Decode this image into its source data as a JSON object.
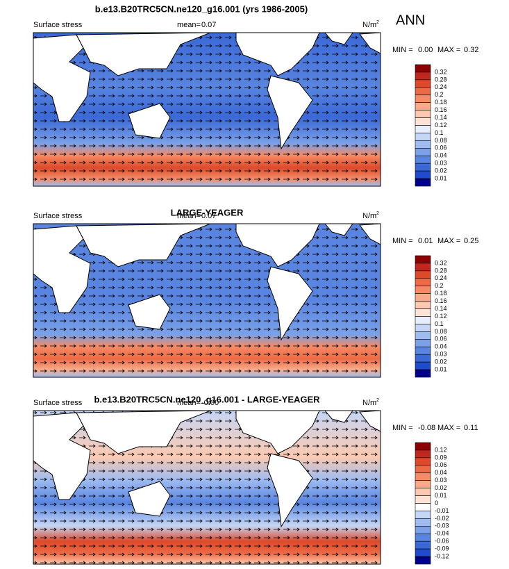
{
  "title": "b.e13.B20TRC5CN.ne120_g16.001 (yrs 1986-2005)",
  "season": "ANN",
  "panels": [
    {
      "variable": "Surface stress",
      "mean_label": "mean=",
      "mean": "0.07",
      "units": "N/m",
      "units_exponent": "2",
      "min_label": "MIN =",
      "min": "0.00",
      "max_label": "MAX =",
      "max": "0.32",
      "colorbar": {
        "labels": [
          "0.32",
          "0.28",
          "0.24",
          "0.2",
          "0.18",
          "0.16",
          "0.14",
          "0.12",
          "0.1",
          "0.08",
          "0.06",
          "0.04",
          "0.03",
          "0.02",
          "0.01"
        ],
        "colors": [
          "#8b0000",
          "#c0281f",
          "#dc4a2a",
          "#ec6a45",
          "#f48b65",
          "#f8ab8b",
          "#fbc9b1",
          "#fde3d5",
          "#e8eefb",
          "#c5d6f6",
          "#9fbcf0",
          "#7aa0e8",
          "#5985e0",
          "#3a68d6",
          "#1f4ccc",
          "#00008b"
        ]
      }
    },
    {
      "title": "LARGE-YEAGER",
      "variable": "Surface stress",
      "mean_label": "mean=",
      "mean": "0.07",
      "units": "N/m",
      "units_exponent": "2",
      "min_label": "MIN =",
      "min": "0.01",
      "max_label": "MAX =",
      "max": "0.25",
      "colorbar": {
        "labels": [
          "0.32",
          "0.28",
          "0.24",
          "0.2",
          "0.18",
          "0.16",
          "0.14",
          "0.12",
          "0.1",
          "0.08",
          "0.06",
          "0.04",
          "0.03",
          "0.02",
          "0.01"
        ],
        "colors": [
          "#8b0000",
          "#c0281f",
          "#dc4a2a",
          "#ec6a45",
          "#f48b65",
          "#f8ab8b",
          "#fbc9b1",
          "#fde3d5",
          "#e8eefb",
          "#c5d6f6",
          "#9fbcf0",
          "#7aa0e8",
          "#5985e0",
          "#3a68d6",
          "#1f4ccc",
          "#00008b"
        ]
      }
    },
    {
      "title": "b.e13.B20TRC5CN.ne120_g16.001 - LARGE-YEAGER",
      "variable": "Surface stress",
      "mean_label": "mean=",
      "mean": "-0.00",
      "units": "N/m",
      "units_exponent": "2",
      "min_label": "MIN =",
      "min": "-0.08",
      "max_label": "MAX =",
      "max": "0.11",
      "colorbar": {
        "labels": [
          "0.12",
          "0.09",
          "0.06",
          "0.04",
          "0.03",
          "0.02",
          "0.01",
          "0",
          "-0.01",
          "-0.02",
          "-0.03",
          "-0.04",
          "-0.06",
          "-0.09",
          "-0.12"
        ],
        "colors": [
          "#8b0000",
          "#c0281f",
          "#dc4a2a",
          "#ec6a45",
          "#f48b65",
          "#f8ab8b",
          "#fbc9b1",
          "#fde3d5",
          "#ffffff",
          "#c5d6f6",
          "#9fbcf0",
          "#7aa0e8",
          "#5985e0",
          "#3a68d6",
          "#1f4ccc",
          "#00008b"
        ]
      }
    }
  ]
}
